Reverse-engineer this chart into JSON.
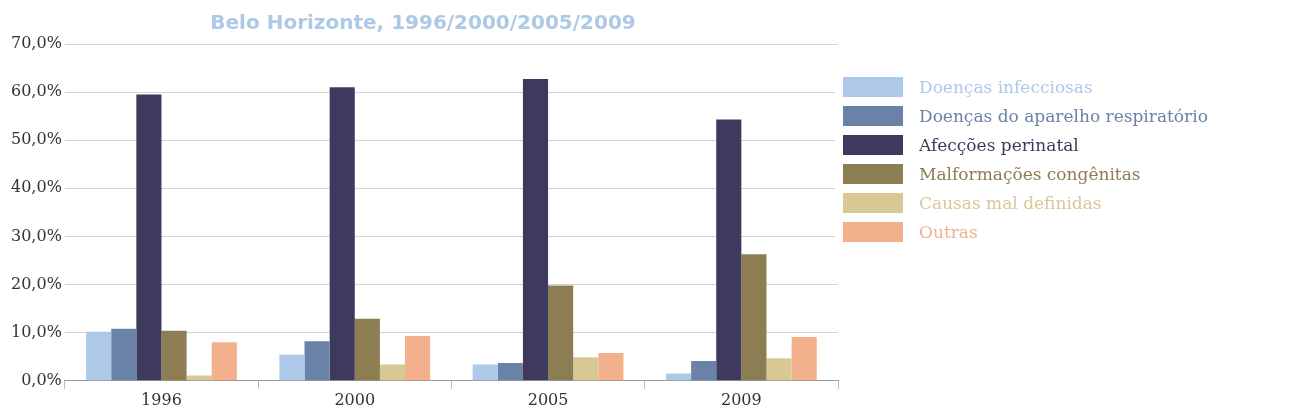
{
  "chart_data": {
    "type": "bar",
    "title": "Belo Horizonte, 1996/2000/2005/2009",
    "categories": [
      "1996",
      "2000",
      "2005",
      "2009"
    ],
    "series": [
      {
        "name": "Doenças infecciosas",
        "color": "#aec8e8",
        "values": [
          10.2,
          5.4,
          3.4,
          1.5
        ]
      },
      {
        "name": "Doenças do aparelho respiratório",
        "color": "#6a82a8",
        "values": [
          10.8,
          8.2,
          3.7,
          4.1
        ]
      },
      {
        "name": "Afecções perinatal",
        "color": "#3e3a5e",
        "values": [
          59.5,
          61.0,
          62.7,
          54.3
        ]
      },
      {
        "name": "Malformações congênitas",
        "color": "#8c7d52",
        "values": [
          10.4,
          12.9,
          19.8,
          26.3
        ]
      },
      {
        "name": "Causas mal definidas",
        "color": "#d8c896",
        "values": [
          1.1,
          3.4,
          4.9,
          4.7
        ]
      },
      {
        "name": "Outras",
        "color": "#f2b08c",
        "values": [
          8.0,
          9.3,
          5.8,
          9.1
        ]
      }
    ],
    "ylim": [
      0,
      70
    ],
    "yticks": [
      {
        "value": 0,
        "label": "0,0%"
      },
      {
        "value": 10,
        "label": "10,0%"
      },
      {
        "value": 20,
        "label": "20,0%"
      },
      {
        "value": 30,
        "label": "30,0%"
      },
      {
        "value": 40,
        "label": "40,0%"
      },
      {
        "value": 50,
        "label": "50,0%"
      },
      {
        "value": 60,
        "label": "60,0%"
      },
      {
        "value": 70,
        "label": "70,0%"
      }
    ],
    "grid": "y",
    "legend": "right"
  }
}
